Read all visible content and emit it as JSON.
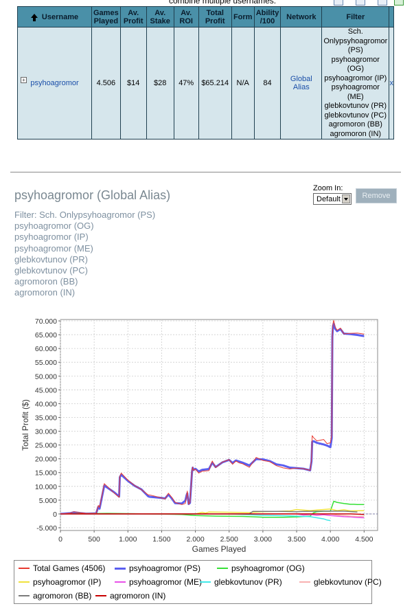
{
  "header": {
    "caption": "combine multiple usernames."
  },
  "table": {
    "columns": [
      "Username",
      "Games Played",
      "Av. Profit",
      "Av. Stake",
      "Av. ROI",
      "Total Profit",
      "Form",
      "Ability /100",
      "Network",
      "Filter"
    ],
    "row": {
      "username": "psyhoagromor",
      "games_played": "4.506",
      "av_profit": "$14",
      "av_stake": "$28",
      "av_roi": "47%",
      "total_profit": "$65.214",
      "form": "N/A",
      "ability": "84",
      "network": "Global Alias",
      "filter": [
        "Sch.",
        "Onlypsyhoagromor",
        "(PS)",
        "psyhoagromor",
        "(OG)",
        "psyhoagromor (IP)",
        "psyhoagromor",
        "(ME)",
        "glebkovtunov (PR)",
        "glebkovtunov (PC)",
        "agromoron (BB)",
        "agromoron (IN)"
      ],
      "remove": "x"
    }
  },
  "section": {
    "title": "psyhoagromor (Global Alias)",
    "filter_lines": [
      "Filter: Sch. Onlypsyhoagromor (PS)",
      "psyhoagromor (OG)",
      "psyhoagromor (IP)",
      "psyhoagromor (ME)",
      "glebkovtunov (PR)",
      "glebkovtunov (PC)",
      "agromoron (BB)",
      "agromoron (IN)"
    ],
    "zoom_label": "Zoom In:",
    "zoom_value": "Default",
    "remove_label": "Remove"
  },
  "colors": {
    "header_bg": "#4a90a8",
    "row_bg": "#d6e6ec",
    "link": "#1a4ea8"
  },
  "chart_data": {
    "type": "line",
    "xlabel": "Games Played",
    "ylabel": "Total Profit ($)",
    "xlim": [
      0,
      4700
    ],
    "ylim": [
      -6,
      70.5
    ],
    "xticks": [
      "0",
      "500",
      "1.000",
      "1.500",
      "2.000",
      "2.500",
      "3.000",
      "3.500",
      "4.000",
      "4.500"
    ],
    "xtick_values": [
      0,
      500,
      1000,
      1500,
      2000,
      2500,
      3000,
      3500,
      4000,
      4500
    ],
    "yticks": [
      "-5.000",
      "0",
      "5.000",
      "10.000",
      "15.000",
      "20.000",
      "25.000",
      "30.000",
      "35.000",
      "40.000",
      "45.000",
      "50.000",
      "55.000",
      "60.000",
      "65.000",
      "70.000"
    ],
    "ytick_values": [
      -5,
      0,
      5,
      10,
      15,
      20,
      25,
      30,
      35,
      40,
      45,
      50,
      55,
      60,
      65,
      70
    ],
    "grid": true,
    "legend_position": "bottom",
    "series": [
      {
        "name": "Total Games (4506)",
        "color": "#e8392f",
        "width": 1,
        "x": [
          0,
          150,
          200,
          300,
          380,
          530,
          560,
          570,
          580,
          650,
          800,
          870,
          880,
          900,
          1000,
          1100,
          1200,
          1300,
          1320,
          1500,
          1550,
          1600,
          1650,
          1700,
          1800,
          1850,
          1870,
          1880,
          1900,
          1920,
          1950,
          1960,
          1970,
          2000,
          2050,
          2100,
          2200,
          2250,
          2300,
          2400,
          2500,
          2550,
          2600,
          2650,
          2700,
          2800,
          2900,
          3000,
          3100,
          3200,
          3300,
          3400,
          3500,
          3600,
          3700,
          3720,
          3730,
          3750,
          3800,
          3900,
          3950,
          4000,
          4020,
          4030,
          4040,
          4050,
          4070,
          4100,
          4150,
          4200,
          4300,
          4400,
          4500
        ],
        "y": [
          0,
          0.3,
          0.8,
          0.4,
          0.2,
          0.2,
          3,
          3,
          2.3,
          11,
          7.5,
          6,
          13.5,
          14.8,
          12.3,
          10.3,
          8.8,
          6.9,
          6.9,
          5.8,
          5.4,
          7.5,
          6,
          4.2,
          3.4,
          3.8,
          6.5,
          8.3,
          3.5,
          4.2,
          15.7,
          17,
          15.8,
          16.2,
          14.8,
          15.5,
          15.7,
          19.2,
          16.8,
          18.8,
          19.7,
          18,
          19.2,
          18.5,
          18.2,
          16.9,
          20.5,
          19.4,
          19,
          17.5,
          16.7,
          16.3,
          16.6,
          16.4,
          15.8,
          19.6,
          28.4,
          27.7,
          26.5,
          27,
          25.5,
          25.8,
          28.6,
          65.1,
          69.2,
          70.2,
          67.8,
          66.6,
          67.4,
          65.3,
          65.5,
          65.6,
          65.2
        ]
      },
      {
        "name": "psyhoagromor (PS)",
        "color": "#5a5ef0",
        "width": 3,
        "x": [
          0,
          150,
          200,
          300,
          380,
          530,
          560,
          570,
          580,
          650,
          800,
          870,
          880,
          900,
          1000,
          1100,
          1200,
          1300,
          1320,
          1500,
          1550,
          1600,
          1650,
          1700,
          1800,
          1850,
          1870,
          1880,
          1900,
          1920,
          1950,
          1960,
          1970,
          2000,
          2050,
          2100,
          2200,
          2250,
          2300,
          2400,
          2500,
          2550,
          2600,
          2650,
          2700,
          2800,
          2900,
          3000,
          3100,
          3200,
          3300,
          3400,
          3500,
          3600,
          3700,
          3720,
          3730,
          3750,
          3800,
          3900,
          3950,
          4000,
          4020,
          4030,
          4040,
          4050,
          4070,
          4100,
          4150,
          4200,
          4300,
          4400,
          4500
        ],
        "y": [
          0,
          0.3,
          0.6,
          0.3,
          0.1,
          0.2,
          2.5,
          2.5,
          1.9,
          10.3,
          7.8,
          6.3,
          13.3,
          14.2,
          12,
          10.2,
          8.9,
          6.4,
          6.2,
          5.8,
          5.6,
          7,
          5.6,
          3.9,
          3.8,
          4.8,
          6.8,
          7.5,
          3.6,
          4,
          15.4,
          16.8,
          15.9,
          16.4,
          15.4,
          16,
          16.3,
          18.6,
          17,
          18.7,
          19.6,
          18.5,
          19.4,
          19,
          18.6,
          17.6,
          19.9,
          19.8,
          19.2,
          18,
          17.6,
          16.8,
          16.6,
          16.4,
          15.8,
          19,
          26.2,
          26.4,
          25.8,
          25.2,
          24.8,
          24.2,
          27.5,
          64.4,
          68.2,
          69,
          67.2,
          66.3,
          67,
          65.4,
          65.2,
          64.9,
          64.5
        ]
      },
      {
        "name": "psyhoagromor (OG)",
        "color": "#36e036",
        "width": 1.5,
        "x": [
          0,
          700,
          1000,
          1300,
          1800,
          2000,
          2300,
          2700,
          3000,
          3300,
          3500,
          3700,
          3750,
          3800,
          3900,
          4000,
          4050,
          4100,
          4200,
          4300,
          4350,
          4400,
          4500
        ],
        "y": [
          0,
          0.2,
          0.1,
          0,
          -0.2,
          -0.6,
          -0.8,
          -0.9,
          -1.2,
          -1.2,
          -1.1,
          -0.8,
          0.4,
          0.8,
          1,
          1,
          4.6,
          4.2,
          3.8,
          3.5,
          3.5,
          3.4,
          3.4
        ]
      },
      {
        "name": "psyhoagromor (IP)",
        "color": "#f0e23c",
        "width": 1.5,
        "x": [
          0,
          2000,
          2100,
          2150,
          2200,
          2500,
          2800,
          3000,
          3200,
          3400,
          3500,
          3700,
          3800,
          3900,
          4000,
          4100,
          4200,
          4300,
          4500
        ],
        "y": [
          0,
          0,
          0.6,
          0.3,
          0.7,
          0.6,
          0.5,
          0.8,
          0.9,
          1.1,
          1.6,
          1.2,
          1.4,
          1.6,
          1.8,
          1.2,
          1.5,
          1.1,
          1.2
        ]
      },
      {
        "name": "psyhoagromor (ME)",
        "color": "#e850e8",
        "width": 1.5,
        "x": [
          0,
          3500,
          3600,
          3700,
          3800,
          3900,
          4000,
          4100,
          4200,
          4300,
          4400,
          4500
        ],
        "y": [
          0,
          0,
          -0.4,
          -0.2,
          -0.5,
          -0.3,
          -0.6,
          -0.8,
          -1,
          -1.1,
          -1.3,
          -1.4
        ]
      },
      {
        "name": "glebkovtunov (PR)",
        "color": "#40e8e8",
        "width": 1.5,
        "x": [
          0,
          2500,
          3000,
          3400,
          3700,
          3800,
          3900,
          3950,
          4000
        ],
        "y": [
          0,
          0,
          -0.5,
          -0.7,
          -1,
          -1.4,
          -1.8,
          -2.2,
          -2.4
        ]
      },
      {
        "name": "glebkovtunov (PC)",
        "color": "#f8b0b0",
        "width": 1.5,
        "x": [
          0,
          4000,
          4100,
          4200,
          4300,
          4400,
          4500
        ],
        "y": [
          0,
          0,
          -0.4,
          -0.6,
          -0.8,
          -0.9,
          -1
        ]
      },
      {
        "name": "agromoron (BB)",
        "color": "#7a7a7a",
        "width": 1.5,
        "x": [
          0,
          2800,
          2850,
          3300,
          3500,
          3600,
          3900,
          4200,
          4400
        ],
        "y": [
          0,
          0,
          0.9,
          0.9,
          0.8,
          0.9,
          1,
          1,
          0.7
        ]
      },
      {
        "name": "agromoron (IN)",
        "color": "#c80000",
        "width": 1.5,
        "x": [
          0,
          4300,
          4400,
          4500
        ],
        "y": [
          0,
          0,
          -0.1,
          -0.2
        ]
      }
    ]
  }
}
